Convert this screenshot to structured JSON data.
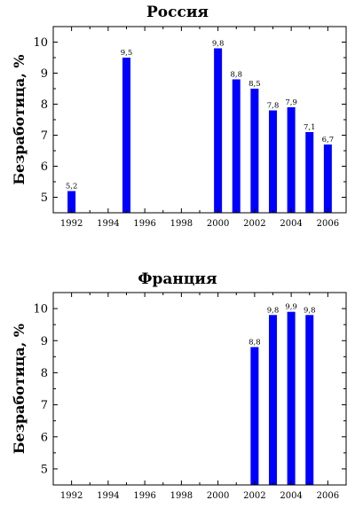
{
  "chart_data": [
    {
      "type": "bar",
      "title": "Россия",
      "ylabel": "Безработица, %",
      "xlabel": "",
      "xlim": [
        1991,
        2007
      ],
      "ylim": [
        4.5,
        10.5
      ],
      "xticks": [
        "1992",
        "1994",
        "1996",
        "1998",
        "2000",
        "2002",
        "2004",
        "2006"
      ],
      "yticks": [
        "5",
        "6",
        "7",
        "8",
        "9",
        "10"
      ],
      "bar_color": "#0000ff",
      "x": [
        1992,
        1995,
        2000,
        2001,
        2002,
        2003,
        2004,
        2005,
        2006
      ],
      "values": [
        5.2,
        9.5,
        9.8,
        8.8,
        8.5,
        7.8,
        7.9,
        7.1,
        6.7
      ],
      "labels": [
        "5,2",
        "9,5",
        "9,8",
        "8,8",
        "8,5",
        "7,8",
        "7,9",
        "7,1",
        "6,7"
      ]
    },
    {
      "type": "bar",
      "title": "Франция",
      "ylabel": "Безработица, %",
      "xlabel": "",
      "xlim": [
        1991,
        2007
      ],
      "ylim": [
        4.5,
        10.5
      ],
      "xticks": [
        "1992",
        "1994",
        "1996",
        "1998",
        "2000",
        "2002",
        "2004",
        "2006"
      ],
      "yticks": [
        "5",
        "6",
        "7",
        "8",
        "9",
        "10"
      ],
      "bar_color": "#0000ff",
      "x": [
        2002,
        2003,
        2004,
        2005
      ],
      "values": [
        8.8,
        9.8,
        9.9,
        9.8
      ],
      "labels": [
        "8,8",
        "9,8",
        "9,9",
        "9,8"
      ]
    }
  ]
}
